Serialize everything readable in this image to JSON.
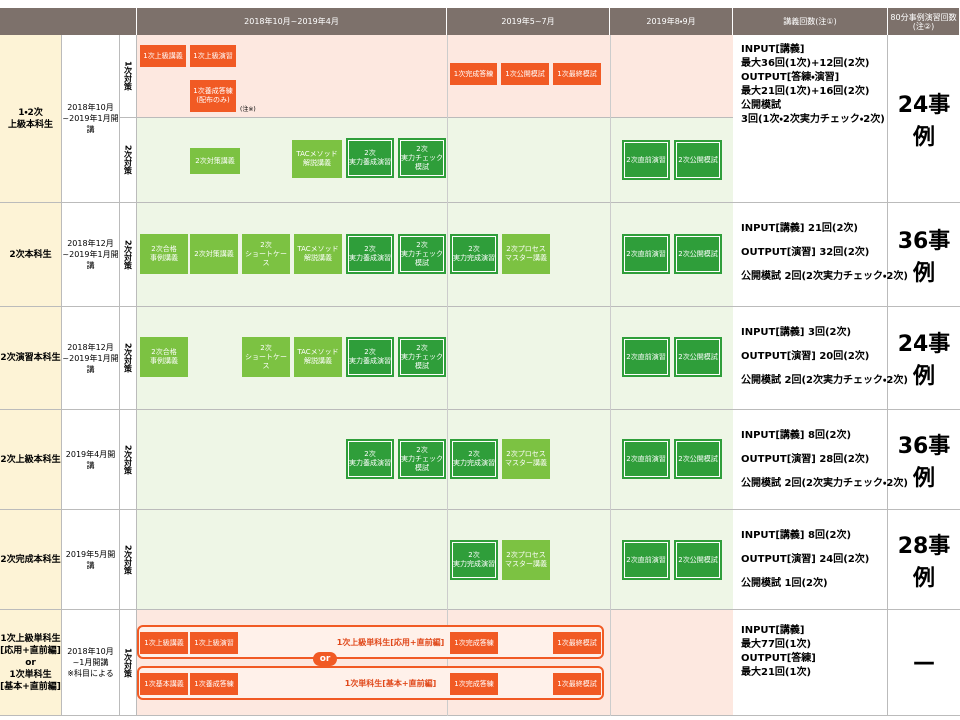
{
  "header": [
    "2018年10月~2019年4月",
    "2019年5~7月",
    "2019年8・9月",
    "講義回数(注①)",
    "80分事例演習回数(注②)"
  ],
  "rows": [
    {
      "name": [
        "1・2次",
        "上級本科生"
      ],
      "period": [
        "2018年10月",
        "~2019年1月開講"
      ],
      "phases": [
        {
          "label": "1次対策",
          "note": "(注※)",
          "boxes": [
            {
              "lines": [
                "1次上級講義"
              ],
              "color": "#f15a24"
            },
            {
              "lines": [
                "1次上級演習"
              ],
              "color": "#f15a24"
            },
            {
              "lines": [
                "1次養成答練",
                "(配布のみ)"
              ],
              "color": "#f15a24"
            },
            {
              "lines": [
                "1次完成答練"
              ],
              "color": "#f15a24"
            },
            {
              "lines": [
                "1次公開模試"
              ],
              "color": "#f15a24"
            },
            {
              "lines": [
                "1次最終模試"
              ],
              "color": "#f15a24"
            }
          ]
        },
        {
          "label": "2次対策",
          "boxes": [
            {
              "lines": [
                "2次対策講義"
              ],
              "color": "#7cc242"
            },
            {
              "lines": [
                "TACメソッド",
                "解説講義"
              ],
              "color": "#7cc242"
            },
            {
              "lines": [
                "2次",
                "実力養成演習"
              ],
              "color": "#2f9e3a"
            },
            {
              "lines": [
                "2次",
                "実力チェック模試"
              ],
              "color": "#2f9e3a"
            },
            {
              "lines": [
                "2次直前演習"
              ],
              "color": "#2f9e3a"
            },
            {
              "lines": [
                "2次公開模試"
              ],
              "color": "#2f9e3a"
            }
          ]
        }
      ],
      "lessons": [
        "INPUT[講義]",
        "最大36回(1次)+12回(2次)",
        "OUTPUT[答練・演習]",
        "最大21回(1次)+16回(2次)",
        "公開模試",
        "3回(1次・2次実力チェック・2次)"
      ],
      "cases": "24事例"
    },
    {
      "name": [
        "2次本科生"
      ],
      "period": [
        "2018年12月",
        "~2019年1月開講"
      ],
      "phases": [
        {
          "label": "2次対策",
          "boxes": [
            {
              "lines": [
                "2次合格",
                "事例講義"
              ],
              "color": "#7cc242"
            },
            {
              "lines": [
                "2次対策講義"
              ],
              "color": "#7cc242"
            },
            {
              "lines": [
                "2次",
                "ショートケース"
              ],
              "color": "#7cc242"
            },
            {
              "lines": [
                "TACメソッド",
                "解説講義"
              ],
              "color": "#7cc242"
            },
            {
              "lines": [
                "2次",
                "実力養成演習"
              ],
              "color": "#2f9e3a"
            },
            {
              "lines": [
                "2次",
                "実力チェック模試"
              ],
              "color": "#2f9e3a"
            },
            {
              "lines": [
                "2次",
                "実力完成演習"
              ],
              "color": "#2f9e3a"
            },
            {
              "lines": [
                "2次プロセス",
                "マスター講義"
              ],
              "color": "#7cc242"
            },
            {
              "lines": [
                "2次直前演習"
              ],
              "color": "#2f9e3a"
            },
            {
              "lines": [
                "2次公開模試"
              ],
              "color": "#2f9e3a"
            }
          ]
        }
      ],
      "lessons": [
        "INPUT[講義] 21回(2次)",
        "OUTPUT[演習] 32回(2次)",
        "公開模試 2回(2次実力チェック・2次)"
      ],
      "cases": "36事例"
    },
    {
      "name": [
        "2次演習本科生"
      ],
      "period": [
        "2018年12月",
        "~2019年1月開講"
      ],
      "phases": [
        {
          "label": "2次対策",
          "boxes": [
            {
              "lines": [
                "2次合格",
                "事例講義"
              ],
              "color": "#7cc242"
            },
            {
              "lines": [
                "2次",
                "ショートケース"
              ],
              "color": "#7cc242"
            },
            {
              "lines": [
                "TACメソッド",
                "解説講義"
              ],
              "color": "#7cc242"
            },
            {
              "lines": [
                "2次",
                "実力養成演習"
              ],
              "color": "#2f9e3a"
            },
            {
              "lines": [
                "2次",
                "実力チェック模試"
              ],
              "color": "#2f9e3a"
            },
            {
              "lines": [
                "2次直前演習"
              ],
              "color": "#2f9e3a"
            },
            {
              "lines": [
                "2次公開模試"
              ],
              "color": "#2f9e3a"
            }
          ]
        }
      ],
      "lessons": [
        "INPUT[講義] 3回(2次)",
        "OUTPUT[演習] 20回(2次)",
        "公開模試 2回(2次実力チェック・2次)"
      ],
      "cases": "24事例"
    },
    {
      "name": [
        "2次上級本科生"
      ],
      "period": [
        "2019年4月開講"
      ],
      "phases": [
        {
          "label": "2次対策",
          "boxes": [
            {
              "lines": [
                "2次",
                "実力養成演習"
              ],
              "color": "#2f9e3a"
            },
            {
              "lines": [
                "2次",
                "実力チェック模試"
              ],
              "color": "#2f9e3a"
            },
            {
              "lines": [
                "2次",
                "実力完成演習"
              ],
              "color": "#2f9e3a"
            },
            {
              "lines": [
                "2次プロセス",
                "マスター講義"
              ],
              "color": "#7cc242"
            },
            {
              "lines": [
                "2次直前演習"
              ],
              "color": "#2f9e3a"
            },
            {
              "lines": [
                "2次公開模試"
              ],
              "color": "#2f9e3a"
            }
          ]
        }
      ],
      "lessons": [
        "INPUT[講義] 8回(2次)",
        "OUTPUT[演習] 28回(2次)",
        "公開模試 2回(2次実力チェック・2次)"
      ],
      "cases": "36事例"
    },
    {
      "name": [
        "2次完成本科生"
      ],
      "period": [
        "2019年5月開講"
      ],
      "phases": [
        {
          "label": "2次対策",
          "boxes": [
            {
              "lines": [
                "2次",
                "実力完成演習"
              ],
              "color": "#2f9e3a"
            },
            {
              "lines": [
                "2次プロセス",
                "マスター講義"
              ],
              "color": "#7cc242"
            },
            {
              "lines": [
                "2次直前演習"
              ],
              "color": "#2f9e3a"
            },
            {
              "lines": [
                "2次公開模試"
              ],
              "color": "#2f9e3a"
            }
          ]
        }
      ],
      "lessons": [
        "INPUT[講義] 8回(2次)",
        "OUTPUT[演習] 24回(2次)",
        "公開模試 1回(2次)"
      ],
      "cases": "28事例"
    },
    {
      "name": [
        "1次上級単科生",
        "[応用+直前編]",
        "or",
        "1次単科生",
        "[基本+直前編]"
      ],
      "period": [
        "2018年10月~1月開講",
        "※科目による"
      ],
      "phases": [
        {
          "label": "1次対策",
          "courses": [
            "1次上級単科生[応用+直前編]",
            "1次単科生[基本+直前編]"
          ],
          "or": "or",
          "boxes": [
            {
              "lines": [
                "1次上級講義"
              ],
              "color": "#f15a24"
            },
            {
              "lines": [
                "1次上級演習"
              ],
              "color": "#f15a24"
            },
            {
              "lines": [
                "1次完成答練"
              ],
              "color": "#f15a24"
            },
            {
              "lines": [
                "1次最終模試"
              ],
              "color": "#f15a24"
            },
            {
              "lines": [
                "1次基本講義"
              ],
              "color": "#f15a24"
            },
            {
              "lines": [
                "1次養成答練"
              ],
              "color": "#f15a24"
            },
            {
              "lines": [
                "1次完成答練"
              ],
              "color": "#f15a24"
            },
            {
              "lines": [
                "1次最終模試"
              ],
              "color": "#f15a24"
            }
          ]
        }
      ],
      "lessons": [
        "INPUT[講義]",
        "最大77回(1次)",
        "OUTPUT[答練]",
        "最大21回(1次)"
      ],
      "cases": "—"
    }
  ]
}
